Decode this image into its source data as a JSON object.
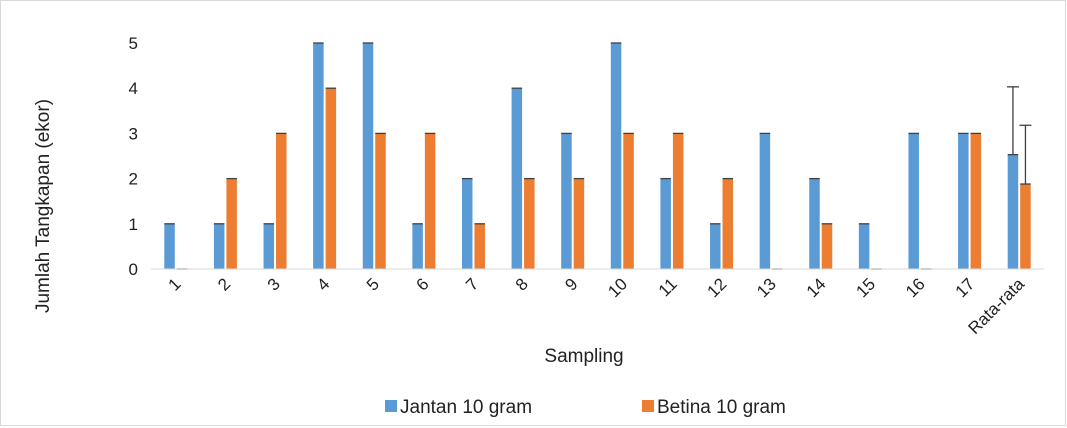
{
  "chart_data": {
    "type": "bar",
    "title": "",
    "xlabel": "Sampling",
    "ylabel": "Jumlah Tangkapan (ekor)",
    "ylim": [
      0,
      5
    ],
    "yticks": [
      "0",
      "1",
      "2",
      "3",
      "4",
      "5"
    ],
    "grid": false,
    "legend_position": "bottom",
    "categories": [
      "1",
      "2",
      "3",
      "4",
      "5",
      "6",
      "7",
      "8",
      "9",
      "10",
      "11",
      "12",
      "13",
      "14",
      "15",
      "16",
      "17",
      "Rata-rata"
    ],
    "series": [
      {
        "name": "Jantan 10 gram",
        "color": "#5b9bd5",
        "values": [
          1,
          1,
          1,
          5,
          5,
          1,
          2,
          4,
          3,
          5,
          2,
          1,
          3,
          2,
          1,
          3,
          3,
          2.53
        ],
        "error": [
          null,
          null,
          null,
          null,
          null,
          null,
          null,
          null,
          null,
          null,
          null,
          null,
          null,
          null,
          null,
          null,
          null,
          1.5
        ]
      },
      {
        "name": "Betina 10 gram",
        "color": "#ed7d31",
        "values": [
          0,
          2,
          3,
          4,
          3,
          3,
          1,
          2,
          2,
          3,
          3,
          2,
          0,
          1,
          0,
          0,
          3,
          1.88
        ],
        "error": [
          null,
          null,
          null,
          null,
          null,
          null,
          null,
          null,
          null,
          null,
          null,
          null,
          null,
          null,
          null,
          null,
          null,
          1.3
        ]
      }
    ]
  }
}
